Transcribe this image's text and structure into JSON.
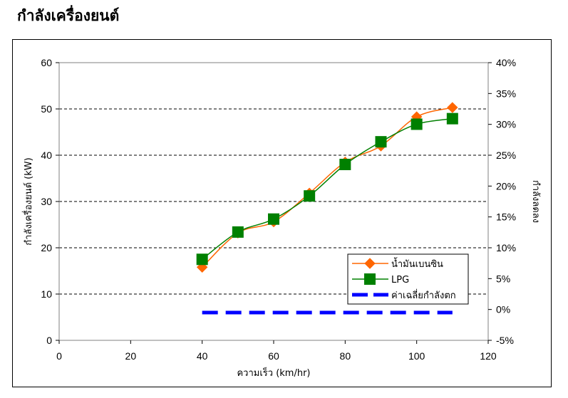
{
  "page": {
    "title": "กำลังเครื่องยนต์"
  },
  "chart_data": {
    "type": "line",
    "title": "",
    "xlabel": "ความเร็ว (km/hr)",
    "ylabel": "กำลังเครื่องยนต์ (kW)",
    "y2label": "กำลังลดลง",
    "xlim": [
      0,
      120
    ],
    "xticks": [
      0,
      20,
      40,
      60,
      80,
      100,
      120
    ],
    "ylim": [
      0,
      60
    ],
    "yticks": [
      0,
      10,
      20,
      30,
      40,
      50,
      60
    ],
    "y2lim": [
      -0.05,
      0.4
    ],
    "y2ticks": [
      "-5%",
      "0%",
      "5%",
      "10%",
      "15%",
      "20%",
      "25%",
      "30%",
      "35%",
      "40%"
    ],
    "grid": "horizontal dashed",
    "legend_position": "lower-right",
    "series": [
      {
        "name": "น้ำมันเบนซิน",
        "axis": "left",
        "marker": "diamond",
        "color": "#FF6600",
        "x": [
          40,
          50,
          60,
          70,
          80,
          90,
          100,
          110
        ],
        "y": [
          15.8,
          23.2,
          25.6,
          31.8,
          38.5,
          42.0,
          48.3,
          50.3
        ]
      },
      {
        "name": "LPG",
        "axis": "left",
        "marker": "square",
        "color": "#008000",
        "x": [
          40,
          50,
          60,
          70,
          80,
          90,
          100,
          110
        ],
        "y": [
          17.5,
          23.4,
          26.2,
          31.2,
          38.0,
          42.9,
          46.7,
          47.9
        ]
      },
      {
        "name": "ค่าเฉลี่ยกำลังตก",
        "axis": "right",
        "marker": "none",
        "style": "dashed",
        "color": "#0000FF",
        "x": [
          40,
          110
        ],
        "y": [
          -0.005,
          -0.005
        ]
      }
    ]
  }
}
